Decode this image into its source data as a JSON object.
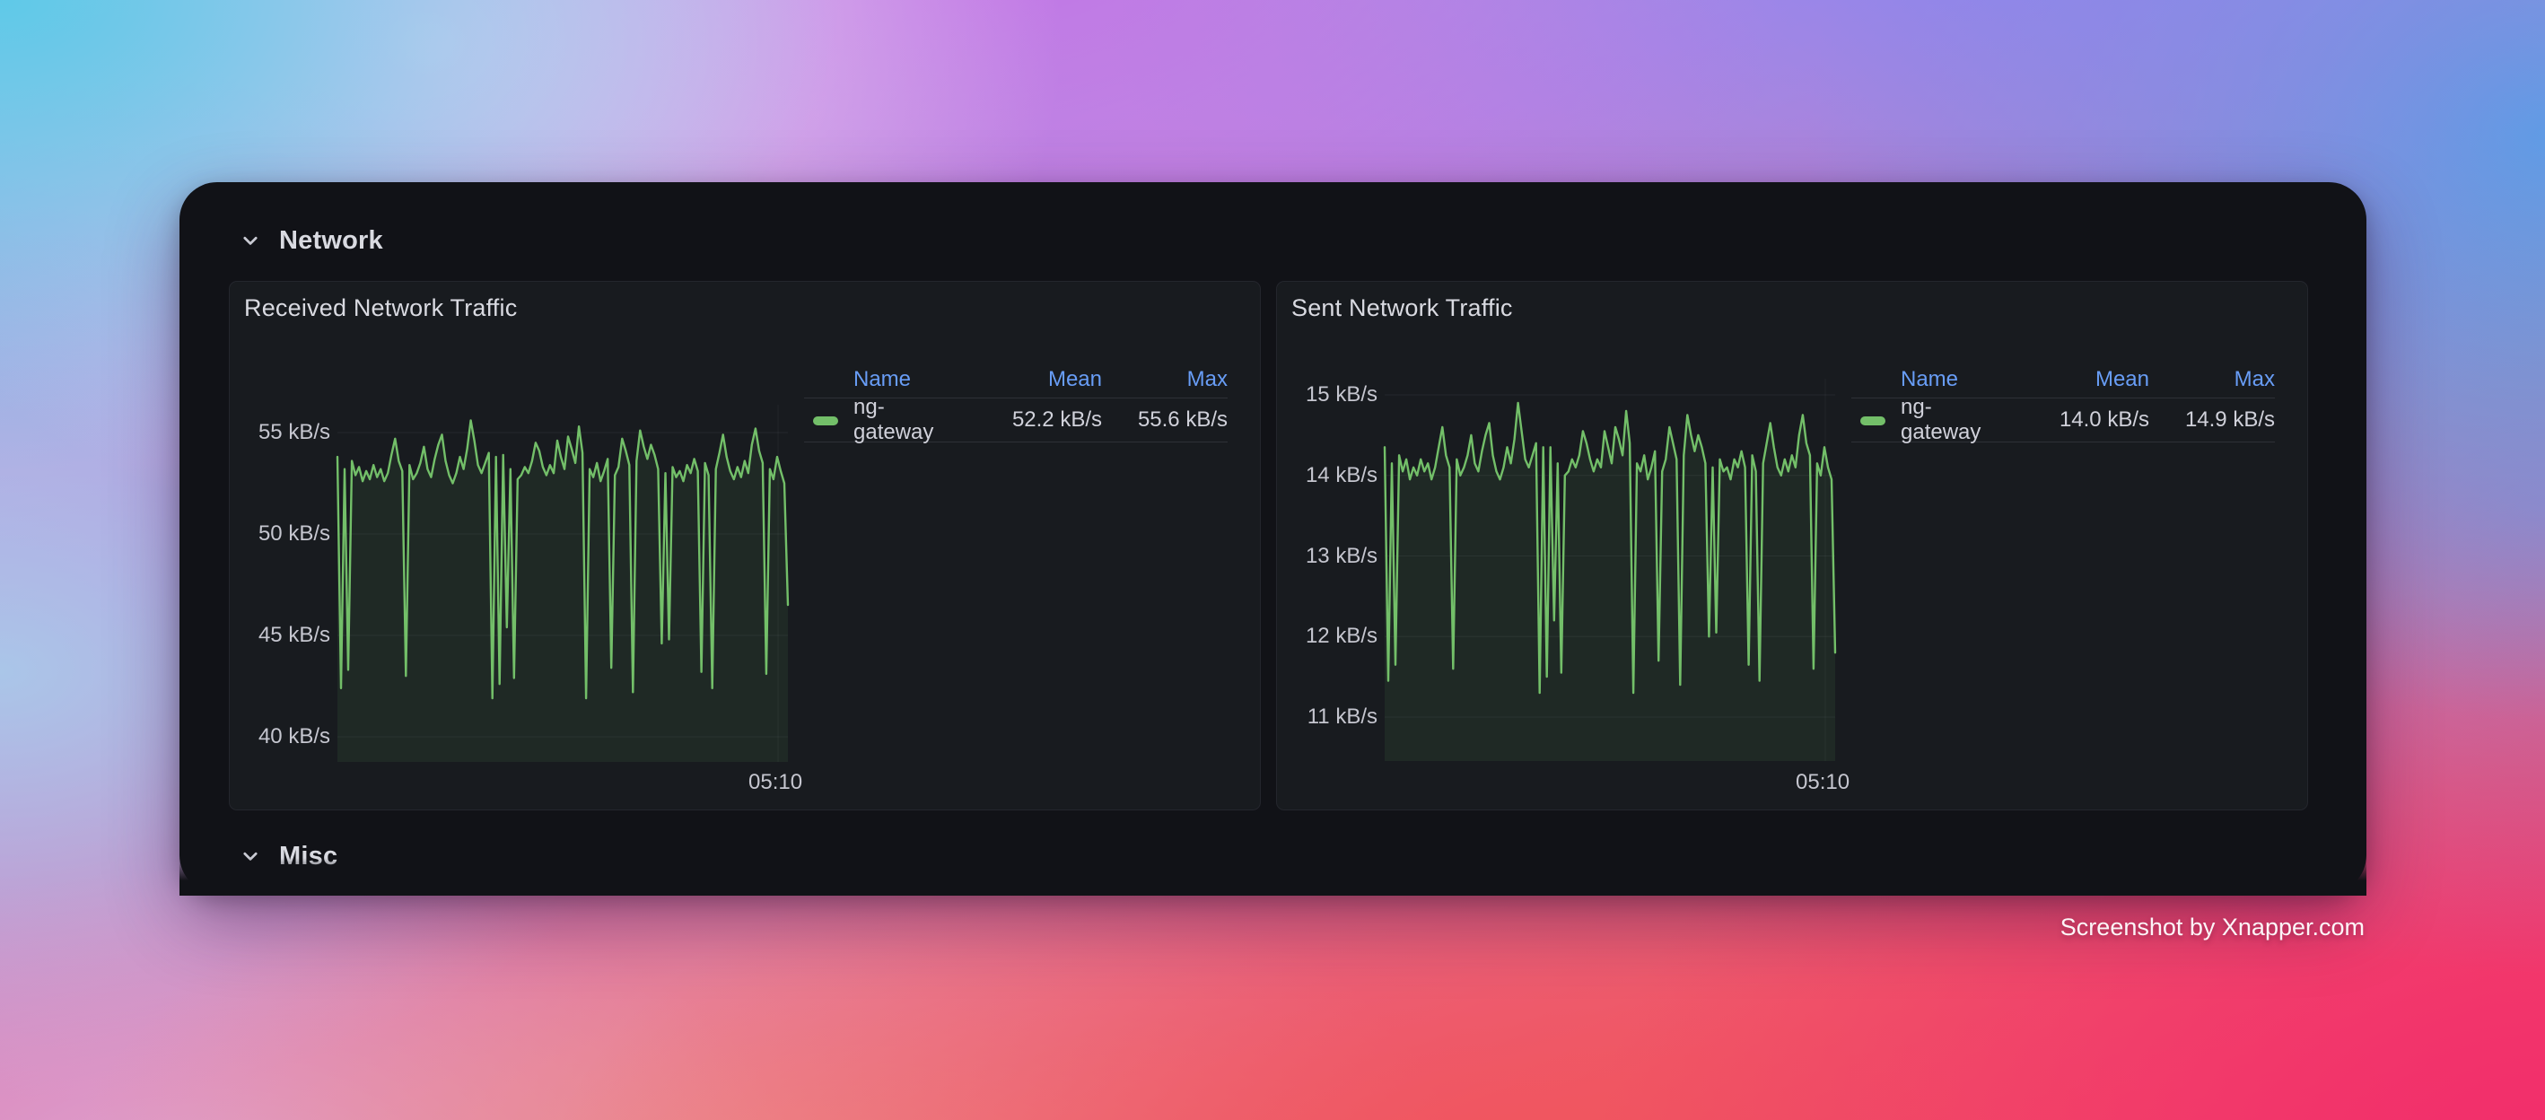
{
  "sections": {
    "network": {
      "label": "Network"
    },
    "misc": {
      "label": "Misc"
    }
  },
  "watermark": "Screenshot by Xnapper.com",
  "colors": {
    "series_green": "#73BF69",
    "legend_header_blue": "#689DF6",
    "card_background": "#111217",
    "panel_background": "#181B1F"
  },
  "panels": [
    {
      "title": "Received Network Traffic",
      "x_axis_label": "05:10",
      "legend": {
        "name_header": "Name",
        "mean_header": "Mean",
        "max_header": "Max",
        "rows": [
          {
            "name": "ng-gateway",
            "mean": "52.2 kB/s",
            "max": "55.6 kB/s"
          }
        ]
      }
    },
    {
      "title": "Sent Network Traffic",
      "x_axis_label": "05:10",
      "legend": {
        "name_header": "Name",
        "mean_header": "Mean",
        "max_header": "Max",
        "rows": [
          {
            "name": "ng-gateway",
            "mean": "14.0 kB/s",
            "max": "14.9 kB/s"
          }
        ]
      }
    }
  ],
  "chart_data": [
    {
      "type": "line",
      "title": "Received Network Traffic",
      "unit": "kB/s",
      "grid": true,
      "legend_position": "right",
      "x_tick_labels": [
        "05:10"
      ],
      "ylim": [
        38.8,
        56.4
      ],
      "y_ticks": [
        {
          "value": 55,
          "label": "55 kB/s"
        },
        {
          "value": 50,
          "label": "50 kB/s"
        },
        {
          "value": 45,
          "label": "45 kB/s"
        },
        {
          "value": 40,
          "label": "40 kB/s"
        }
      ],
      "series": [
        {
          "name": "ng-gateway",
          "color": "#73BF69",
          "mean": "52.2 kB/s",
          "max": "55.6 kB/s",
          "values": [
            53.8,
            42.4,
            53.2,
            43.3,
            53.6,
            52.9,
            53.3,
            52.6,
            53.1,
            52.7,
            53.4,
            52.8,
            53.2,
            52.6,
            53.0,
            53.9,
            54.7,
            53.6,
            53.1,
            43.0,
            53.4,
            52.7,
            53.0,
            53.5,
            54.3,
            53.2,
            52.8,
            53.7,
            54.4,
            54.9,
            53.6,
            52.9,
            52.5,
            53.0,
            53.8,
            53.2,
            54.2,
            55.6,
            54.6,
            53.4,
            53.0,
            53.5,
            54.0,
            41.9,
            53.8,
            42.6,
            53.9,
            45.4,
            53.2,
            42.9,
            52.7,
            52.9,
            53.3,
            53.0,
            53.6,
            54.5,
            54.1,
            53.3,
            52.9,
            53.4,
            53.0,
            54.6,
            53.8,
            53.2,
            54.8,
            54.2,
            53.5,
            55.3,
            54.0,
            41.9,
            53.2,
            52.8,
            53.5,
            52.6,
            53.1,
            53.7,
            43.4,
            52.9,
            53.3,
            54.7,
            54.1,
            53.4,
            42.2,
            53.6,
            55.1,
            54.3,
            53.7,
            54.4,
            53.9,
            53.2,
            44.6,
            53.0,
            44.8,
            53.3,
            52.8,
            53.1,
            52.6,
            53.4,
            53.0,
            53.7,
            53.1,
            43.2,
            53.5,
            52.9,
            42.4,
            53.2,
            54.0,
            54.9,
            53.8,
            53.1,
            52.7,
            53.3,
            52.8,
            53.6,
            53.0,
            54.4,
            55.2,
            54.1,
            53.5,
            43.1,
            53.2,
            52.7,
            53.8,
            53.1,
            52.5,
            46.5
          ]
        }
      ]
    },
    {
      "type": "line",
      "title": "Sent Network Traffic",
      "unit": "kB/s",
      "grid": true,
      "legend_position": "right",
      "x_tick_labels": [
        "05:10"
      ],
      "ylim": [
        10.45,
        15.2
      ],
      "y_ticks": [
        {
          "value": 15,
          "label": "15 kB/s"
        },
        {
          "value": 14,
          "label": "14 kB/s"
        },
        {
          "value": 13,
          "label": "13 kB/s"
        },
        {
          "value": 12,
          "label": "12 kB/s"
        },
        {
          "value": 11,
          "label": "11 kB/s"
        }
      ],
      "series": [
        {
          "name": "ng-gateway",
          "color": "#73BF69",
          "mean": "14.0 kB/s",
          "max": "14.9 kB/s",
          "values": [
            14.35,
            11.45,
            14.15,
            11.65,
            14.25,
            14.05,
            14.2,
            13.95,
            14.1,
            14.0,
            14.2,
            14.05,
            14.15,
            13.95,
            14.1,
            14.35,
            14.6,
            14.25,
            14.1,
            11.6,
            14.2,
            14.0,
            14.1,
            14.25,
            14.5,
            14.15,
            14.05,
            14.3,
            14.5,
            14.65,
            14.25,
            14.05,
            13.95,
            14.1,
            14.35,
            14.15,
            14.45,
            14.9,
            14.55,
            14.2,
            14.1,
            14.25,
            14.4,
            11.3,
            14.35,
            11.5,
            14.35,
            12.2,
            14.15,
            11.55,
            14.0,
            14.05,
            14.2,
            14.1,
            14.25,
            14.55,
            14.4,
            14.2,
            14.05,
            14.2,
            14.1,
            14.55,
            14.35,
            14.15,
            14.6,
            14.45,
            14.25,
            14.8,
            14.4,
            11.3,
            14.15,
            14.05,
            14.25,
            13.95,
            14.1,
            14.3,
            11.7,
            14.05,
            14.2,
            14.6,
            14.4,
            14.2,
            11.4,
            14.25,
            14.75,
            14.5,
            14.3,
            14.5,
            14.35,
            14.15,
            12.0,
            14.1,
            12.05,
            14.2,
            14.05,
            14.1,
            13.95,
            14.2,
            14.1,
            14.3,
            14.1,
            11.65,
            14.25,
            14.05,
            11.45,
            14.15,
            14.4,
            14.65,
            14.35,
            14.1,
            14.0,
            14.2,
            14.05,
            14.25,
            14.1,
            14.5,
            14.75,
            14.4,
            14.25,
            11.6,
            14.15,
            14.0,
            14.35,
            14.1,
            13.95,
            11.8
          ]
        }
      ]
    }
  ]
}
